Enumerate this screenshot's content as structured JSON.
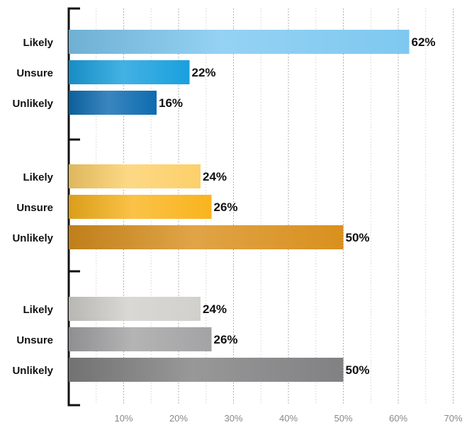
{
  "chart_data": {
    "type": "bar",
    "orientation": "horizontal",
    "xlim": [
      0,
      70
    ],
    "x_ticks": [
      10,
      20,
      30,
      40,
      50,
      60,
      70
    ],
    "x_tick_labels": [
      "10%",
      "20%",
      "30%",
      "40%",
      "50%",
      "60%",
      "70%"
    ],
    "grid": "vertical dotted",
    "groups": [
      {
        "categories": [
          "Likely",
          "Unsure",
          "Unlikely"
        ],
        "values": [
          62,
          22,
          16
        ],
        "value_labels": [
          "62%",
          "22%",
          "16%"
        ],
        "colors": [
          "#7ec8f0",
          "#1aa0de",
          "#0e6cb0"
        ]
      },
      {
        "categories": [
          "Likely",
          "Unsure",
          "Unlikely"
        ],
        "values": [
          24,
          26,
          50
        ],
        "value_labels": [
          "24%",
          "26%",
          "50%"
        ],
        "colors": [
          "#fcd06a",
          "#f9b41e",
          "#d9901e"
        ]
      },
      {
        "categories": [
          "Likely",
          "Unsure",
          "Unlikely"
        ],
        "values": [
          24,
          26,
          50
        ],
        "value_labels": [
          "24%",
          "26%",
          "50%"
        ],
        "colors": [
          "#d2d0cc",
          "#a3a3a5",
          "#818183"
        ]
      }
    ]
  }
}
